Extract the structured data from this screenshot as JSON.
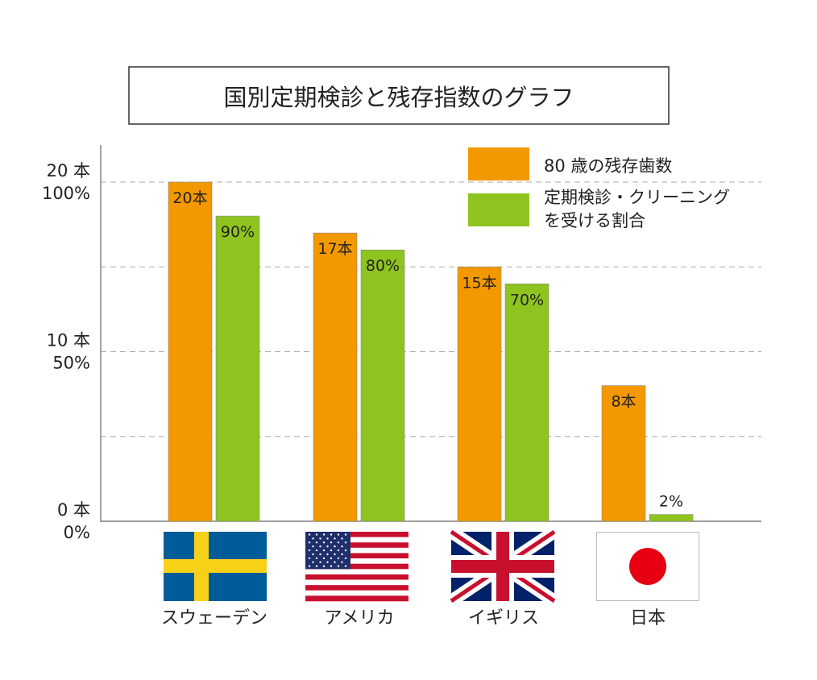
{
  "chart_data": {
    "type": "bar",
    "title": "国別定期検診と残存指数のグラフ",
    "categories": [
      "スウェーデン",
      "アメリカ",
      "イギリス",
      "日本"
    ],
    "flags": [
      "sweden-flag",
      "usa-flag",
      "uk-flag",
      "japan-flag"
    ],
    "series": [
      {
        "name": "80 歳の残存歯数",
        "values": [
          20,
          17,
          15,
          8
        ],
        "unit": "本",
        "labels": [
          "20本",
          "17本",
          "15本",
          "8本"
        ],
        "color": "#F39800",
        "axis_max": 20
      },
      {
        "name_lines": [
          "定期検診・クリーニング",
          "を受ける割合"
        ],
        "name": "定期検診・クリーニングを受ける割合",
        "values": [
          90,
          80,
          70,
          2
        ],
        "unit": "%",
        "labels": [
          "90%",
          "80%",
          "70%",
          "2%"
        ],
        "color": "#8FC31F",
        "axis_max": 100
      }
    ],
    "y_ticks": [
      {
        "teeth": "20 本",
        "pct": "100%",
        "value": 1.0
      },
      {
        "teeth": "10 本",
        "pct": "50%",
        "value": 0.5
      },
      {
        "teeth": "0 本",
        "pct": "0%",
        "value": 0
      }
    ],
    "gridlines": [
      1.0,
      0.75,
      0.5,
      0.25
    ],
    "grid": true,
    "legend": "top-right"
  }
}
